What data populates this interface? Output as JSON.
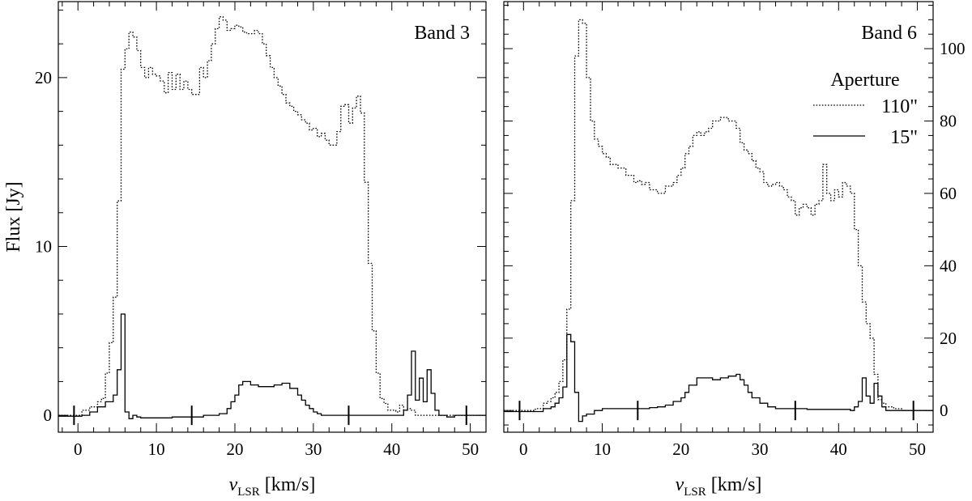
{
  "chart_data": [
    {
      "type": "line",
      "panel_label": "Band 3",
      "xlabel_italic": "v",
      "xlabel_sub": "LSR",
      "xlabel_unit": " [km/s]",
      "ylabel": "Flux [Jy]",
      "y_axis_side": "left",
      "xlim": [
        -2.5,
        52
      ],
      "ylim": [
        -1,
        24.5
      ],
      "xticks": [
        0,
        10,
        20,
        30,
        40,
        50
      ],
      "yticks": [
        0,
        10,
        20
      ],
      "tick_marks_on_spectrum": [
        -0.5,
        14.5,
        34.5,
        49.5
      ],
      "series": [
        {
          "name": "110\"",
          "style": "dotted",
          "step_x": [
            -2.5,
            0.5,
            1.5,
            2.5,
            3.0,
            3.5,
            4.0,
            4.5,
            5.0,
            5.5,
            6.0,
            6.5,
            7.0,
            7.5,
            8.0,
            8.5,
            9.0,
            9.5,
            10.0,
            10.5,
            11.0,
            11.5,
            12.0,
            12.5,
            13.0,
            13.5,
            14.0,
            14.5,
            15.0,
            15.5,
            16.0,
            16.5,
            17.0,
            17.5,
            18.0,
            18.5,
            19.0,
            19.5,
            20.0,
            20.5,
            21.0,
            21.5,
            22.0,
            22.5,
            23.0,
            23.5,
            24.0,
            24.5,
            25.0,
            25.5,
            26.0,
            26.5,
            27.0,
            27.5,
            28.0,
            28.5,
            29.0,
            29.5,
            30.0,
            30.5,
            31.0,
            31.5,
            32.0,
            32.5,
            33.0,
            33.5,
            34.0,
            34.5,
            35.0,
            35.5,
            36.0,
            36.5,
            37.0,
            37.5,
            38.0,
            38.5,
            39.0,
            39.5,
            40.0,
            40.5,
            41.0,
            41.5,
            42.0,
            42.5,
            43.0,
            43.5,
            44.0,
            44.5,
            45.0,
            45.5,
            46.0,
            47.0,
            48.0,
            49.0,
            50.0,
            51.0
          ],
          "step_y": [
            0.0,
            0.3,
            0.5,
            0.8,
            1.0,
            2.5,
            4.3,
            7.0,
            12.7,
            20.5,
            21.7,
            22.7,
            22.4,
            21.6,
            20.6,
            20.0,
            20.6,
            20.2,
            20.1,
            19.8,
            19.1,
            20.3,
            19.3,
            20.2,
            19.3,
            19.8,
            19.3,
            19.0,
            19.0,
            20.6,
            20.0,
            21.0,
            22.0,
            22.9,
            23.6,
            23.4,
            22.8,
            22.9,
            23.1,
            23.0,
            22.7,
            22.6,
            22.6,
            22.8,
            22.6,
            22.0,
            21.3,
            20.6,
            20.0,
            19.5,
            19.0,
            18.5,
            18.3,
            18.0,
            17.8,
            17.5,
            17.3,
            16.9,
            17.0,
            16.5,
            16.7,
            16.3,
            16.0,
            16.0,
            16.8,
            18.3,
            18.4,
            17.3,
            18.2,
            18.9,
            17.9,
            13.8,
            9.0,
            5.0,
            2.5,
            1.0,
            0.7,
            0.3,
            0.3,
            0.2,
            0.6,
            0.3,
            0.4,
            0.3,
            0.0,
            0.0,
            0.0,
            0.0,
            0.0,
            0.0,
            0.0,
            0.0,
            0.0,
            0.0,
            0.0,
            0.0
          ]
        },
        {
          "name": "15\"",
          "style": "solid",
          "step_x": [
            -2.5,
            0.5,
            1.5,
            2.5,
            3.5,
            4.5,
            5.0,
            5.5,
            6.0,
            6.5,
            7.0,
            7.5,
            8.0,
            10.0,
            12.0,
            14.0,
            16.0,
            18.0,
            19.0,
            19.5,
            20.0,
            20.5,
            21.0,
            22.0,
            23.0,
            24.0,
            25.0,
            26.0,
            27.0,
            28.0,
            28.5,
            29.0,
            29.5,
            30.0,
            30.5,
            31.0,
            32.0,
            34.0,
            36.0,
            38.0,
            40.0,
            41.5,
            42.0,
            42.5,
            43.0,
            43.5,
            44.0,
            44.5,
            45.0,
            45.5,
            46.0,
            47.0,
            48.0,
            49.0,
            50.0,
            51.0
          ],
          "step_y": [
            -0.05,
            0.0,
            0.2,
            0.5,
            0.8,
            1.2,
            2.7,
            6.0,
            0.2,
            -0.2,
            0.0,
            -0.1,
            -0.15,
            -0.15,
            -0.1,
            -0.1,
            0.0,
            0.1,
            0.4,
            0.8,
            1.2,
            1.8,
            2.0,
            1.8,
            1.7,
            1.7,
            1.8,
            1.9,
            1.6,
            1.2,
            0.9,
            0.6,
            0.4,
            0.2,
            0.1,
            0.0,
            0.0,
            0.0,
            0.0,
            0.0,
            0.0,
            0.3,
            1.2,
            3.8,
            0.9,
            2.2,
            0.8,
            2.7,
            1.3,
            0.3,
            0.0,
            -0.1,
            0.0,
            0.0,
            0.0,
            0.0
          ]
        }
      ]
    },
    {
      "type": "line",
      "panel_label": "Band 6",
      "xlabel_italic": "v",
      "xlabel_sub": "LSR",
      "xlabel_unit": " [km/s]",
      "ylabel": "",
      "y_axis_side": "right",
      "xlim": [
        -2.5,
        52
      ],
      "ylim": [
        -6,
        113
      ],
      "xticks": [
        0,
        10,
        20,
        30,
        40,
        50
      ],
      "yticks": [
        0,
        20,
        40,
        60,
        80,
        100
      ],
      "tick_marks_on_spectrum": [
        -0.5,
        14.5,
        34.5,
        49.5
      ],
      "legend": {
        "title": "Aperture",
        "position": "top-right"
      },
      "series": [
        {
          "name": "110\"",
          "style": "dotted",
          "step_x": [
            -2.5,
            1.5,
            2.5,
            3.0,
            3.5,
            4.0,
            4.5,
            5.0,
            5.5,
            6.0,
            6.5,
            7.0,
            7.5,
            8.0,
            8.5,
            9.0,
            9.5,
            10.0,
            10.5,
            11.0,
            12.0,
            13.0,
            14.0,
            14.5,
            15.0,
            15.5,
            16.0,
            17.0,
            18.0,
            19.0,
            19.5,
            20.0,
            20.5,
            21.0,
            21.5,
            22.0,
            22.5,
            23.0,
            23.5,
            24.0,
            25.0,
            26.0,
            27.0,
            27.5,
            28.0,
            28.5,
            29.0,
            29.5,
            30.0,
            30.5,
            31.0,
            31.5,
            32.0,
            32.5,
            33.0,
            33.5,
            34.0,
            34.5,
            35.0,
            35.5,
            36.0,
            36.5,
            37.0,
            37.5,
            38.0,
            38.5,
            39.0,
            39.5,
            40.0,
            40.5,
            41.0,
            41.5,
            42.0,
            42.5,
            43.0,
            43.5,
            44.0,
            44.5,
            45.0,
            45.5,
            46.0,
            47.0,
            48.0,
            49.0,
            50.0,
            51.0
          ],
          "step_y": [
            0.0,
            0.5,
            2.0,
            2.5,
            3.5,
            5.0,
            8.0,
            14.0,
            28.0,
            58.0,
            98.0,
            108.0,
            107.0,
            92.0,
            80.0,
            75.0,
            73.0,
            71.0,
            70.0,
            68.0,
            67.0,
            65.0,
            63.0,
            63.5,
            62.5,
            63.0,
            61.0,
            60.0,
            62.0,
            63.0,
            65.0,
            67.0,
            71.0,
            73.0,
            76.0,
            77.0,
            76.0,
            77.0,
            78.0,
            80.0,
            81.0,
            80.0,
            78.0,
            74.0,
            72.0,
            71.0,
            69.0,
            67.0,
            66.0,
            63.0,
            62.0,
            62.5,
            63.0,
            62.0,
            61.0,
            59.0,
            58.0,
            54.0,
            56.0,
            57.0,
            56.0,
            54.0,
            57.0,
            58.0,
            68.0,
            60.0,
            58.0,
            61.0,
            59.0,
            63.0,
            62.0,
            60.0,
            50.0,
            40.0,
            30.0,
            24.0,
            20.0,
            10.0,
            3.0,
            2.0,
            1.0,
            0.5,
            0.0,
            0.0,
            0.0,
            0.0
          ]
        },
        {
          "name": "15\"",
          "style": "solid",
          "step_x": [
            -2.5,
            2.5,
            3.5,
            4.0,
            4.5,
            5.0,
            5.5,
            6.0,
            6.5,
            7.0,
            7.5,
            8.0,
            9.0,
            10.0,
            12.0,
            14.0,
            16.0,
            17.0,
            18.0,
            19.0,
            20.0,
            20.5,
            21.0,
            22.0,
            23.0,
            24.0,
            25.0,
            26.0,
            27.0,
            27.5,
            28.0,
            28.5,
            29.0,
            30.0,
            31.0,
            32.0,
            34.0,
            36.0,
            38.0,
            40.0,
            41.5,
            42.0,
            42.5,
            43.0,
            43.5,
            44.0,
            44.5,
            45.0,
            45.5,
            46.0,
            47.0,
            48.0,
            49.0,
            50.0,
            51.0
          ],
          "step_y": [
            -0.3,
            0.5,
            1.0,
            2.0,
            3.5,
            6.5,
            21.0,
            19.0,
            5.0,
            -3.0,
            -1.5,
            -1.0,
            0.0,
            0.5,
            0.5,
            0.5,
            0.8,
            1.0,
            1.5,
            2.5,
            3.5,
            5.0,
            7.0,
            9.0,
            9.0,
            8.5,
            9.0,
            9.5,
            10.0,
            8.5,
            7.0,
            5.0,
            3.5,
            2.0,
            1.0,
            0.5,
            0.5,
            0.3,
            0.3,
            0.3,
            0.0,
            1.0,
            2.5,
            9.0,
            4.0,
            2.0,
            7.5,
            4.0,
            1.0,
            0.0,
            0.0,
            0.0,
            0.0,
            0.0,
            0.0
          ]
        }
      ]
    }
  ]
}
